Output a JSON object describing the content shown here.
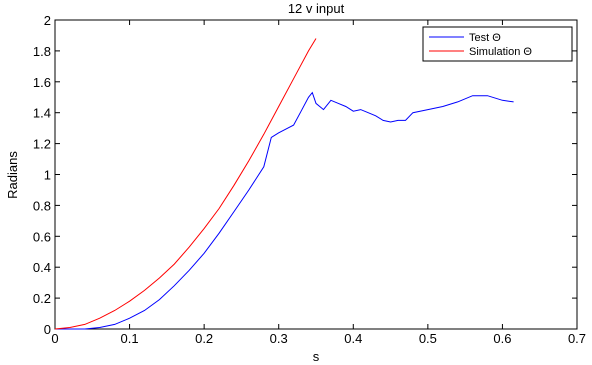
{
  "chart_data": {
    "type": "line",
    "title": "12 v input",
    "xlabel": "s",
    "ylabel": "Radians",
    "xlim": [
      0,
      0.7
    ],
    "ylim": [
      0,
      2
    ],
    "xticks": [
      0,
      0.1,
      0.2,
      0.3,
      0.4,
      0.5,
      0.6,
      0.7
    ],
    "xtick_labels": [
      "0",
      "0.1",
      "0.2",
      "0.3",
      "0.4",
      "0.5",
      "0.6",
      "0.7"
    ],
    "yticks": [
      0,
      0.2,
      0.4,
      0.6,
      0.8,
      1,
      1.2,
      1.4,
      1.6,
      1.8,
      2
    ],
    "ytick_labels": [
      "0",
      "0.2",
      "0.4",
      "0.6",
      "0.8",
      "1",
      "1.2",
      "1.4",
      "1.6",
      "1.8",
      "2"
    ],
    "grid": false,
    "legend_position": "top-right",
    "series": [
      {
        "name": "Test Θ",
        "color": "#0000ff",
        "x": [
          0,
          0.04,
          0.06,
          0.08,
          0.1,
          0.12,
          0.14,
          0.16,
          0.18,
          0.2,
          0.22,
          0.24,
          0.26,
          0.28,
          0.29,
          0.3,
          0.32,
          0.33,
          0.34,
          0.345,
          0.35,
          0.36,
          0.37,
          0.38,
          0.39,
          0.4,
          0.41,
          0.42,
          0.43,
          0.44,
          0.45,
          0.46,
          0.47,
          0.48,
          0.5,
          0.52,
          0.54,
          0.56,
          0.58,
          0.6,
          0.615
        ],
        "y": [
          0,
          0,
          0.01,
          0.03,
          0.07,
          0.12,
          0.19,
          0.28,
          0.38,
          0.49,
          0.62,
          0.76,
          0.9,
          1.05,
          1.24,
          1.27,
          1.32,
          1.41,
          1.5,
          1.53,
          1.46,
          1.42,
          1.48,
          1.46,
          1.44,
          1.41,
          1.42,
          1.4,
          1.38,
          1.35,
          1.34,
          1.35,
          1.35,
          1.4,
          1.42,
          1.44,
          1.47,
          1.51,
          1.51,
          1.48,
          1.47
        ]
      },
      {
        "name": "Simulation Θ",
        "color": "#ff0000",
        "x": [
          0,
          0.02,
          0.04,
          0.06,
          0.08,
          0.1,
          0.12,
          0.14,
          0.16,
          0.18,
          0.2,
          0.22,
          0.24,
          0.26,
          0.28,
          0.3,
          0.32,
          0.34,
          0.35
        ],
        "y": [
          0,
          0.01,
          0.03,
          0.07,
          0.12,
          0.18,
          0.25,
          0.33,
          0.42,
          0.53,
          0.65,
          0.78,
          0.93,
          1.09,
          1.26,
          1.44,
          1.62,
          1.8,
          1.88
        ]
      }
    ]
  }
}
